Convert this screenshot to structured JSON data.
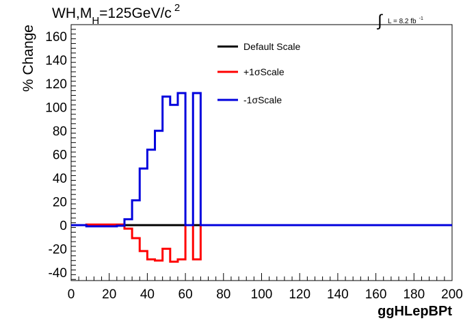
{
  "title_main": "WH,M",
  "title_sub": "H",
  "title_rest": "=125GeV/c",
  "title_sup": "2",
  "lumi_integral": "∫",
  "lumi_text": "L = 8.2 fb",
  "lumi_sup": "-1",
  "chart_data": {
    "type": "line",
    "xlabel": "ggHLepBPt",
    "ylabel": "% Change",
    "xlim": [
      0,
      200
    ],
    "ylim": [
      -47,
      170
    ],
    "x_ticks": [
      0,
      20,
      40,
      60,
      80,
      100,
      120,
      140,
      160,
      180,
      200
    ],
    "y_ticks": [
      -40,
      -20,
      0,
      20,
      40,
      60,
      80,
      100,
      120,
      140,
      160
    ],
    "bin_edges": [
      0,
      4,
      8,
      12,
      16,
      20,
      24,
      28,
      32,
      36,
      40,
      44,
      48,
      52,
      56,
      60,
      64,
      68,
      72,
      76,
      80,
      84,
      88,
      92,
      96,
      100,
      104,
      108,
      112,
      116,
      120,
      124,
      128,
      132,
      136,
      140,
      144,
      148,
      152,
      156,
      160,
      164,
      168,
      172,
      176,
      180,
      184,
      188,
      192,
      196,
      200
    ],
    "series": [
      {
        "name": "Default Scale",
        "color": "#000000",
        "values": [
          0,
          0,
          0,
          0,
          0,
          0,
          0,
          0,
          0,
          0,
          0,
          0,
          0,
          0,
          0,
          0,
          0,
          0,
          0,
          0,
          0,
          0,
          0,
          0,
          0,
          0,
          0,
          0,
          0,
          0,
          0,
          0,
          0,
          0,
          0,
          0,
          0,
          0,
          0,
          0,
          0,
          0,
          0,
          0,
          0,
          0,
          0,
          0,
          0,
          0
        ]
      },
      {
        "name": "+1σScale",
        "color": "#ff0000",
        "values": [
          0,
          0,
          0.5,
          0.5,
          0.5,
          0.5,
          0.5,
          -3,
          -11,
          -22,
          -29,
          -30,
          -20,
          -31,
          -29,
          0,
          -29,
          0,
          0,
          0,
          0,
          0,
          0,
          0,
          0,
          0,
          0,
          0,
          0,
          0,
          0,
          0,
          0,
          0,
          0,
          0,
          0,
          0,
          0,
          0,
          0,
          0,
          0,
          0,
          0,
          0,
          0,
          0,
          0,
          0
        ]
      },
      {
        "name": "-1σScale",
        "color": "#0000dd",
        "values": [
          0,
          0,
          -1,
          -1,
          -1,
          -1,
          -0.5,
          5,
          21,
          48,
          64,
          80,
          109,
          102,
          112,
          0,
          112,
          0,
          0,
          0,
          0,
          0,
          0,
          0,
          0,
          0,
          0,
          0,
          0,
          0,
          0,
          0,
          0,
          0,
          0,
          0,
          0,
          0,
          0,
          0,
          0,
          0,
          0,
          0,
          0,
          0,
          0,
          0,
          0,
          0
        ]
      }
    ],
    "legend_position": "top-center"
  }
}
